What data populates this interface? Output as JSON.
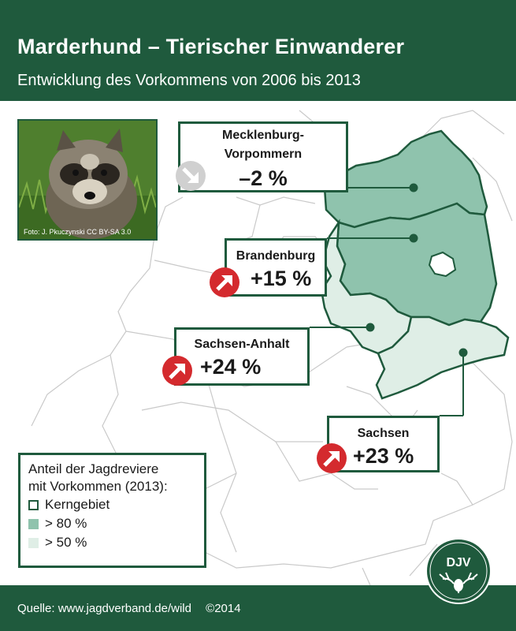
{
  "header": {
    "title": "Marderhund – Tierischer Einwanderer",
    "subtitle": "Entwicklung des Vorkommens von 2006 bis 2013"
  },
  "photo": {
    "credit": "Foto: J. Pkuczynski CC BY-SA 3.0"
  },
  "states": [
    {
      "name": "Mecklenburg-Vorpommern",
      "name_line1": "Mecklenburg-",
      "name_line2": "Vorpommern",
      "change": "–2 %",
      "trend": "down",
      "level": "> 80 %"
    },
    {
      "name": "Brandenburg",
      "change": "+15 %",
      "trend": "up",
      "level": "> 80 %"
    },
    {
      "name": "Sachsen-Anhalt",
      "change": "+24 %",
      "trend": "up",
      "level": "> 50 %"
    },
    {
      "name": "Sachsen",
      "change": "+23 %",
      "trend": "up",
      "level": "> 50 %"
    }
  ],
  "legend": {
    "heading_line1": "Anteil der Jagdreviere",
    "heading_line2": "mit Vorkommen (2013):",
    "items": [
      {
        "label": "Kerngebiet",
        "color": "#1f5a3d"
      },
      {
        "label": "> 80 %",
        "color": "#8fc3ad"
      },
      {
        "label": "> 50 %",
        "color": "#dfeee6"
      }
    ]
  },
  "logo": {
    "text": "DJV"
  },
  "footer": {
    "source": "Quelle: www.jagdverband.de/wild",
    "copyright": "©2014"
  },
  "colors": {
    "brand_green": "#1f5a3d",
    "dark_fill": "#8fc3ad",
    "light_fill": "#dfeee6",
    "trend_up": "#d42a2e",
    "trend_down": "#d0d0d0"
  }
}
